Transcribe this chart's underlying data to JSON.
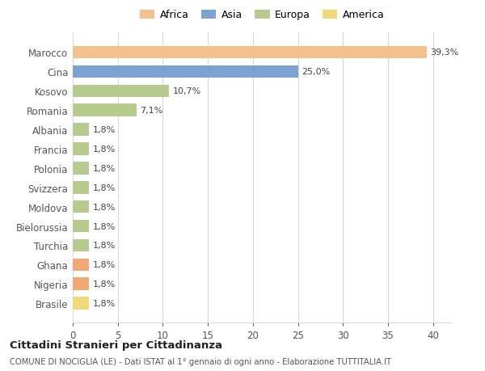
{
  "categories": [
    "Brasile",
    "Nigeria",
    "Ghana",
    "Turchia",
    "Bielorussia",
    "Moldova",
    "Svizzera",
    "Polonia",
    "Francia",
    "Albania",
    "Romania",
    "Kosovo",
    "Cina",
    "Marocco"
  ],
  "values": [
    1.8,
    1.8,
    1.8,
    1.8,
    1.8,
    1.8,
    1.8,
    1.8,
    1.8,
    1.8,
    7.1,
    10.7,
    25.0,
    39.3
  ],
  "colors": [
    "#f2d978",
    "#f2a875",
    "#f2a875",
    "#b5ca8d",
    "#b5ca8d",
    "#b5ca8d",
    "#b5ca8d",
    "#b5ca8d",
    "#b5ca8d",
    "#b5ca8d",
    "#b5ca8d",
    "#b5ca8d",
    "#7aa3d4",
    "#f5c18a"
  ],
  "labels": [
    "1,8%",
    "1,8%",
    "1,8%",
    "1,8%",
    "1,8%",
    "1,8%",
    "1,8%",
    "1,8%",
    "1,8%",
    "1,8%",
    "7,1%",
    "10,7%",
    "25,0%",
    "39,3%"
  ],
  "xlim": [
    0,
    42
  ],
  "xticks": [
    0,
    5,
    10,
    15,
    20,
    25,
    30,
    35,
    40
  ],
  "legend_labels": [
    "Africa",
    "Asia",
    "Europa",
    "America"
  ],
  "legend_colors": [
    "#f5c18a",
    "#7aa3d4",
    "#b5ca8d",
    "#f2d978"
  ],
  "title": "Cittadini Stranieri per Cittadinanza",
  "subtitle": "COMUNE DI NOCIGLIA (LE) - Dati ISTAT al 1° gennaio di ogni anno - Elaborazione TUTTITALIA.IT",
  "bg_color": "#ffffff",
  "grid_color": "#d8d8d8"
}
